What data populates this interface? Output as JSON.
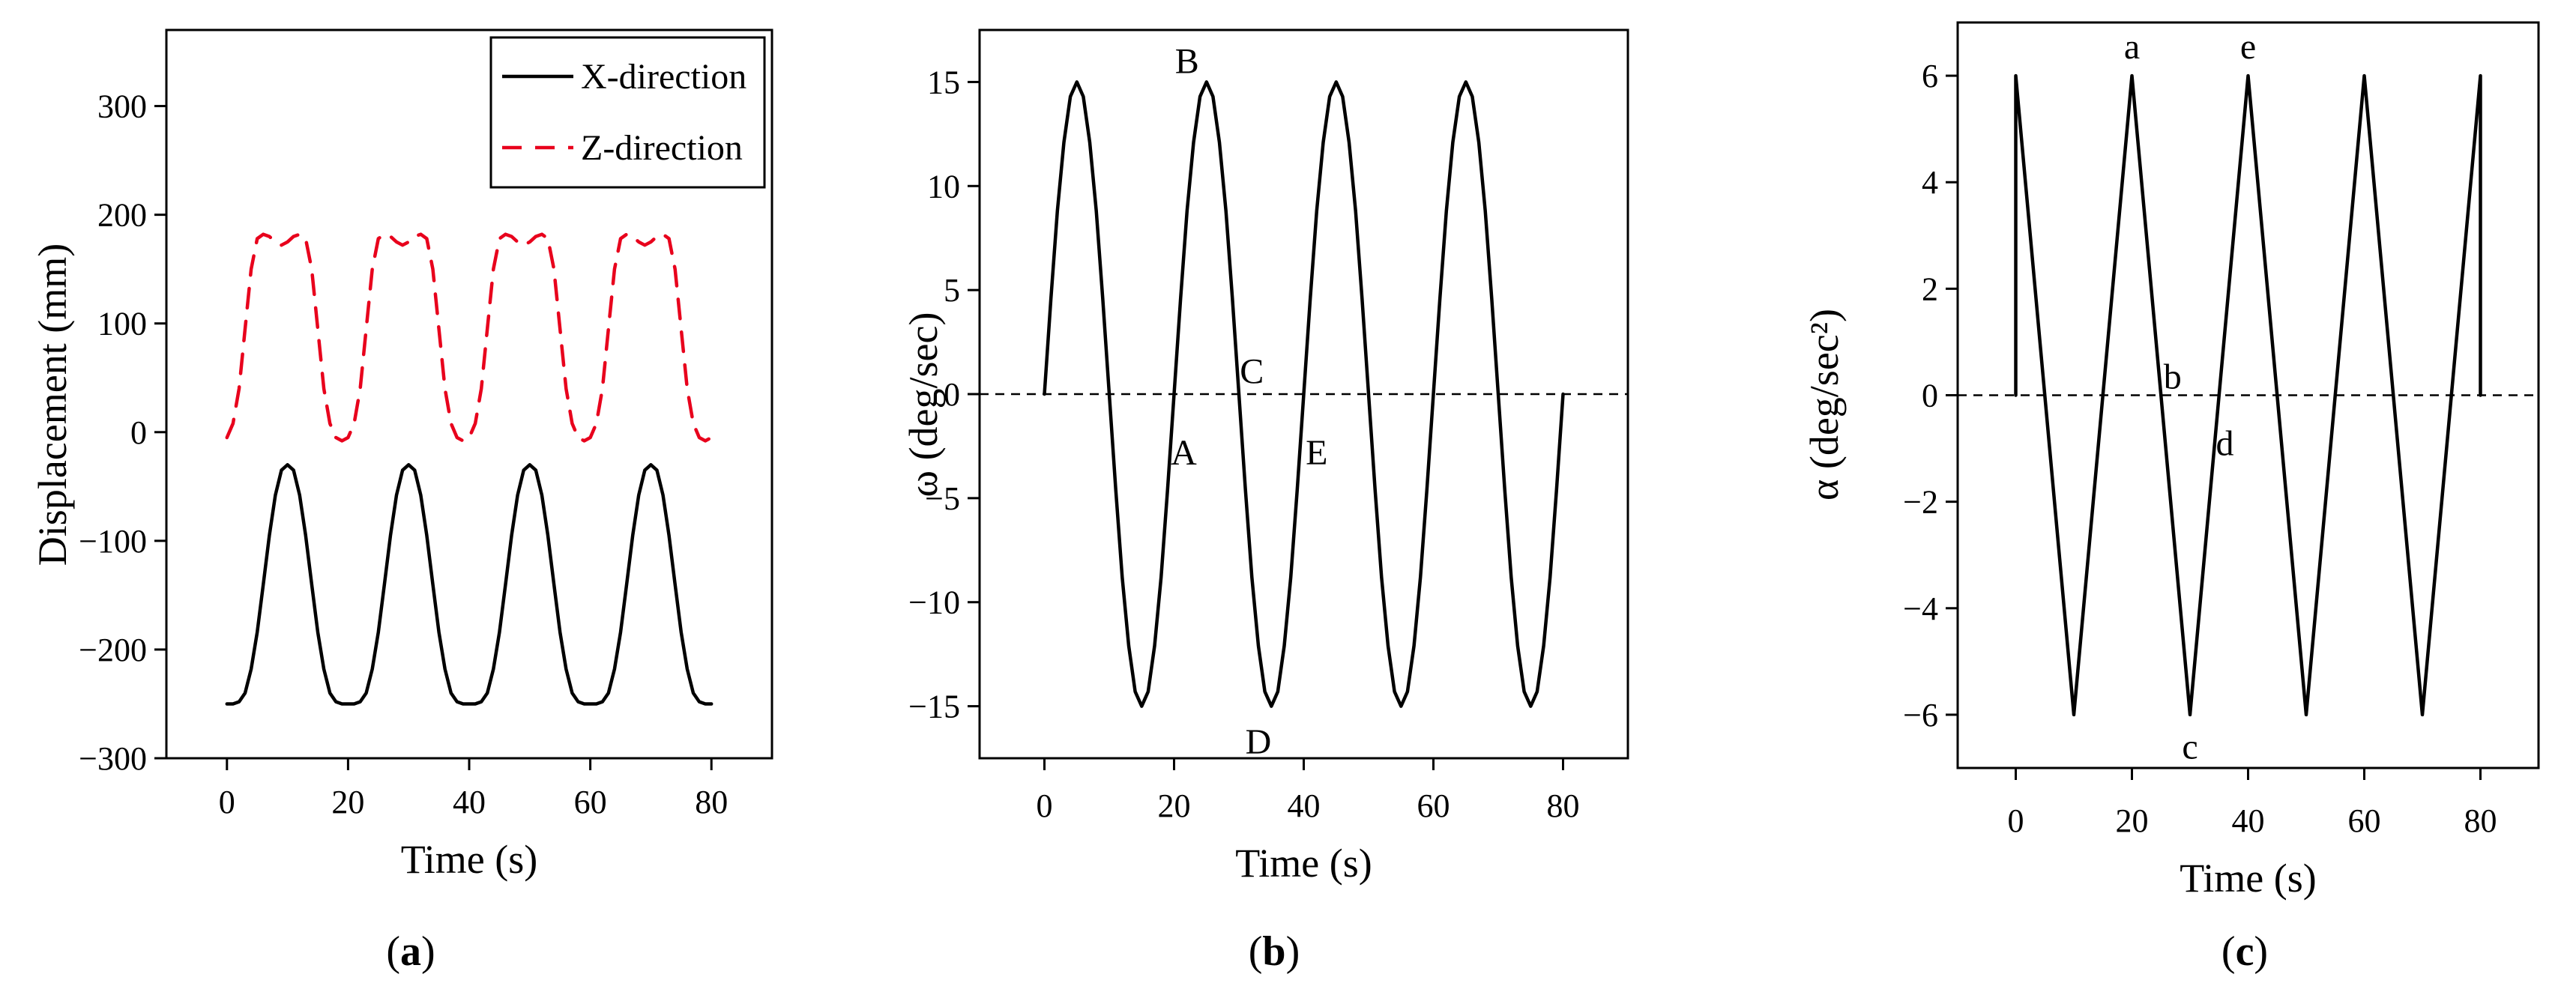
{
  "chart_data": [
    {
      "id": "a",
      "type": "line",
      "caption": "(a)",
      "xlabel": "Time (s)",
      "ylabel": "Displacement (mm)",
      "xlim": [
        -10,
        90
      ],
      "ylim": [
        -300,
        370
      ],
      "xticks": [
        0,
        20,
        40,
        60,
        80
      ],
      "yticks": [
        -300,
        -200,
        -100,
        0,
        100,
        200,
        300
      ],
      "legend_position": "top-right",
      "series": [
        {
          "name": "X-direction",
          "color": "#000000",
          "dash": "solid",
          "x": [
            0,
            1,
            2,
            3,
            4,
            5,
            6,
            7,
            8,
            9,
            10,
            11,
            12,
            13,
            14,
            15,
            16,
            17,
            18,
            19,
            20,
            21,
            22,
            23,
            24,
            25,
            26,
            27,
            28,
            29,
            30,
            31,
            32,
            33,
            34,
            35,
            36,
            37,
            38,
            39,
            40,
            41,
            42,
            43,
            44,
            45,
            46,
            47,
            48,
            49,
            50,
            51,
            52,
            53,
            54,
            55,
            56,
            57,
            58,
            59,
            60,
            61,
            62,
            63,
            64,
            65,
            66,
            67,
            68,
            69,
            70,
            71,
            72,
            73,
            74,
            75,
            76,
            77,
            78,
            79,
            80
          ],
          "y": [
            -250,
            -250,
            -248,
            -240,
            -218,
            -184,
            -140,
            -95,
            -58,
            -35,
            -30,
            -35,
            -58,
            -95,
            -140,
            -184,
            -218,
            -240,
            -248,
            -250,
            -250,
            -250,
            -248,
            -240,
            -218,
            -184,
            -140,
            -95,
            -58,
            -35,
            -30,
            -35,
            -58,
            -95,
            -140,
            -184,
            -218,
            -240,
            -248,
            -250,
            -250,
            -250,
            -248,
            -240,
            -218,
            -184,
            -140,
            -95,
            -58,
            -35,
            -30,
            -35,
            -58,
            -95,
            -140,
            -184,
            -218,
            -240,
            -248,
            -250,
            -250,
            -250,
            -248,
            -240,
            -218,
            -184,
            -140,
            -95,
            -58,
            -35,
            -30,
            -35,
            -58,
            -95,
            -140,
            -184,
            -218,
            -240,
            -248,
            -250,
            -250
          ]
        },
        {
          "name": "Z-direction",
          "color": "#e8001c",
          "dash": "dashed",
          "x": [
            0,
            1,
            2,
            3,
            4,
            5,
            6,
            7,
            8,
            9,
            10,
            11,
            12,
            13,
            14,
            15,
            16,
            17,
            18,
            19,
            20,
            21,
            22,
            23,
            24,
            25,
            26,
            27,
            28,
            29,
            30,
            31,
            32,
            33,
            34,
            35,
            36,
            37,
            38,
            39,
            40,
            41,
            42,
            43,
            44,
            45,
            46,
            47,
            48,
            49,
            50,
            51,
            52,
            53,
            54,
            55,
            56,
            57,
            58,
            59,
            60,
            61,
            62,
            63,
            64,
            65,
            66,
            67,
            68,
            69,
            70,
            71,
            72,
            73,
            74,
            75,
            76,
            77,
            78,
            79,
            80
          ],
          "y": [
            -5,
            8,
            40,
            95,
            150,
            178,
            182,
            180,
            175,
            172,
            175,
            180,
            182,
            178,
            150,
            95,
            40,
            8,
            -5,
            -8,
            -5,
            8,
            40,
            95,
            150,
            178,
            182,
            180,
            175,
            172,
            175,
            180,
            182,
            178,
            150,
            95,
            40,
            8,
            -5,
            -8,
            -5,
            8,
            40,
            95,
            150,
            178,
            182,
            180,
            175,
            172,
            175,
            180,
            182,
            178,
            150,
            95,
            40,
            8,
            -5,
            -8,
            -5,
            8,
            40,
            95,
            150,
            178,
            182,
            180,
            175,
            172,
            175,
            180,
            182,
            178,
            150,
            95,
            40,
            8,
            -5,
            -8,
            -5
          ]
        }
      ]
    },
    {
      "id": "b",
      "type": "line",
      "caption": "(b)",
      "xlabel": "Time (s)",
      "ylabel": "ω (deg/sec)",
      "xlim": [
        -10,
        90
      ],
      "ylim": [
        -17.5,
        17.5
      ],
      "xticks": [
        0,
        20,
        40,
        60,
        80
      ],
      "yticks": [
        -15,
        -10,
        -5,
        0,
        5,
        10,
        15
      ],
      "reference_line": 0,
      "series": [
        {
          "name": "",
          "color": "#000000",
          "dash": "solid",
          "x": [
            0,
            1,
            2,
            3,
            4,
            5,
            6,
            7,
            8,
            9,
            10,
            11,
            12,
            13,
            14,
            15,
            16,
            17,
            18,
            19,
            20,
            21,
            22,
            23,
            24,
            25,
            26,
            27,
            28,
            29,
            30,
            31,
            32,
            33,
            34,
            35,
            36,
            37,
            38,
            39,
            40,
            41,
            42,
            43,
            44,
            45,
            46,
            47,
            48,
            49,
            50,
            51,
            52,
            53,
            54,
            55,
            56,
            57,
            58,
            59,
            60,
            61,
            62,
            63,
            64,
            65,
            66,
            67,
            68,
            69,
            70,
            71,
            72,
            73,
            74,
            75,
            76,
            77,
            78,
            79,
            80
          ],
          "y": [
            0,
            4.6,
            8.8,
            12.1,
            14.3,
            15,
            14.3,
            12.1,
            8.8,
            4.6,
            0,
            -4.6,
            -8.8,
            -12.1,
            -14.3,
            -15,
            -14.3,
            -12.1,
            -8.8,
            -4.6,
            0,
            4.6,
            8.8,
            12.1,
            14.3,
            15,
            14.3,
            12.1,
            8.8,
            4.6,
            0,
            -4.6,
            -8.8,
            -12.1,
            -14.3,
            -15,
            -14.3,
            -12.1,
            -8.8,
            -4.6,
            0,
            4.6,
            8.8,
            12.1,
            14.3,
            15,
            14.3,
            12.1,
            8.8,
            4.6,
            0,
            -4.6,
            -8.8,
            -12.1,
            -14.3,
            -15,
            -14.3,
            -12.1,
            -8.8,
            -4.6,
            0,
            4.6,
            8.8,
            12.1,
            14.3,
            15,
            14.3,
            12.1,
            8.8,
            4.6,
            0,
            -4.6,
            -8.8,
            -12.1,
            -14.3,
            -15,
            -14.3,
            -12.1,
            -8.8,
            -4.6,
            0
          ]
        }
      ],
      "annotations": [
        {
          "text": "B",
          "x": 22,
          "y": 16
        },
        {
          "text": "C",
          "x": 32,
          "y": 1.1
        },
        {
          "text": "A",
          "x": 21.5,
          "y": -2.8
        },
        {
          "text": "E",
          "x": 42,
          "y": -2.8
        },
        {
          "text": "D",
          "x": 33,
          "y": -16.7
        }
      ]
    },
    {
      "id": "c",
      "type": "line",
      "caption": "(c)",
      "xlabel": "Time (s)",
      "ylabel": "α (deg/sec²)",
      "xlim": [
        -10,
        90
      ],
      "ylim": [
        -7,
        7
      ],
      "xticks": [
        0,
        20,
        40,
        60,
        80
      ],
      "yticks": [
        -6,
        -4,
        -2,
        0,
        2,
        4,
        6
      ],
      "reference_line": 0,
      "series": [
        {
          "name": "",
          "color": "#000000",
          "dash": "solid",
          "x": [
            0,
            0,
            10,
            20,
            30,
            40,
            50,
            60,
            70,
            80,
            80
          ],
          "y": [
            0,
            6,
            -6,
            6,
            -6,
            6,
            -6,
            6,
            -6,
            6,
            0
          ]
        }
      ],
      "annotations": [
        {
          "text": "a",
          "x": 20,
          "y": 6.55
        },
        {
          "text": "e",
          "x": 40,
          "y": 6.55
        },
        {
          "text": "b",
          "x": 27,
          "y": 0.35
        },
        {
          "text": "d",
          "x": 36,
          "y": -0.9
        },
        {
          "text": "c",
          "x": 30,
          "y": -6.6
        }
      ]
    }
  ]
}
